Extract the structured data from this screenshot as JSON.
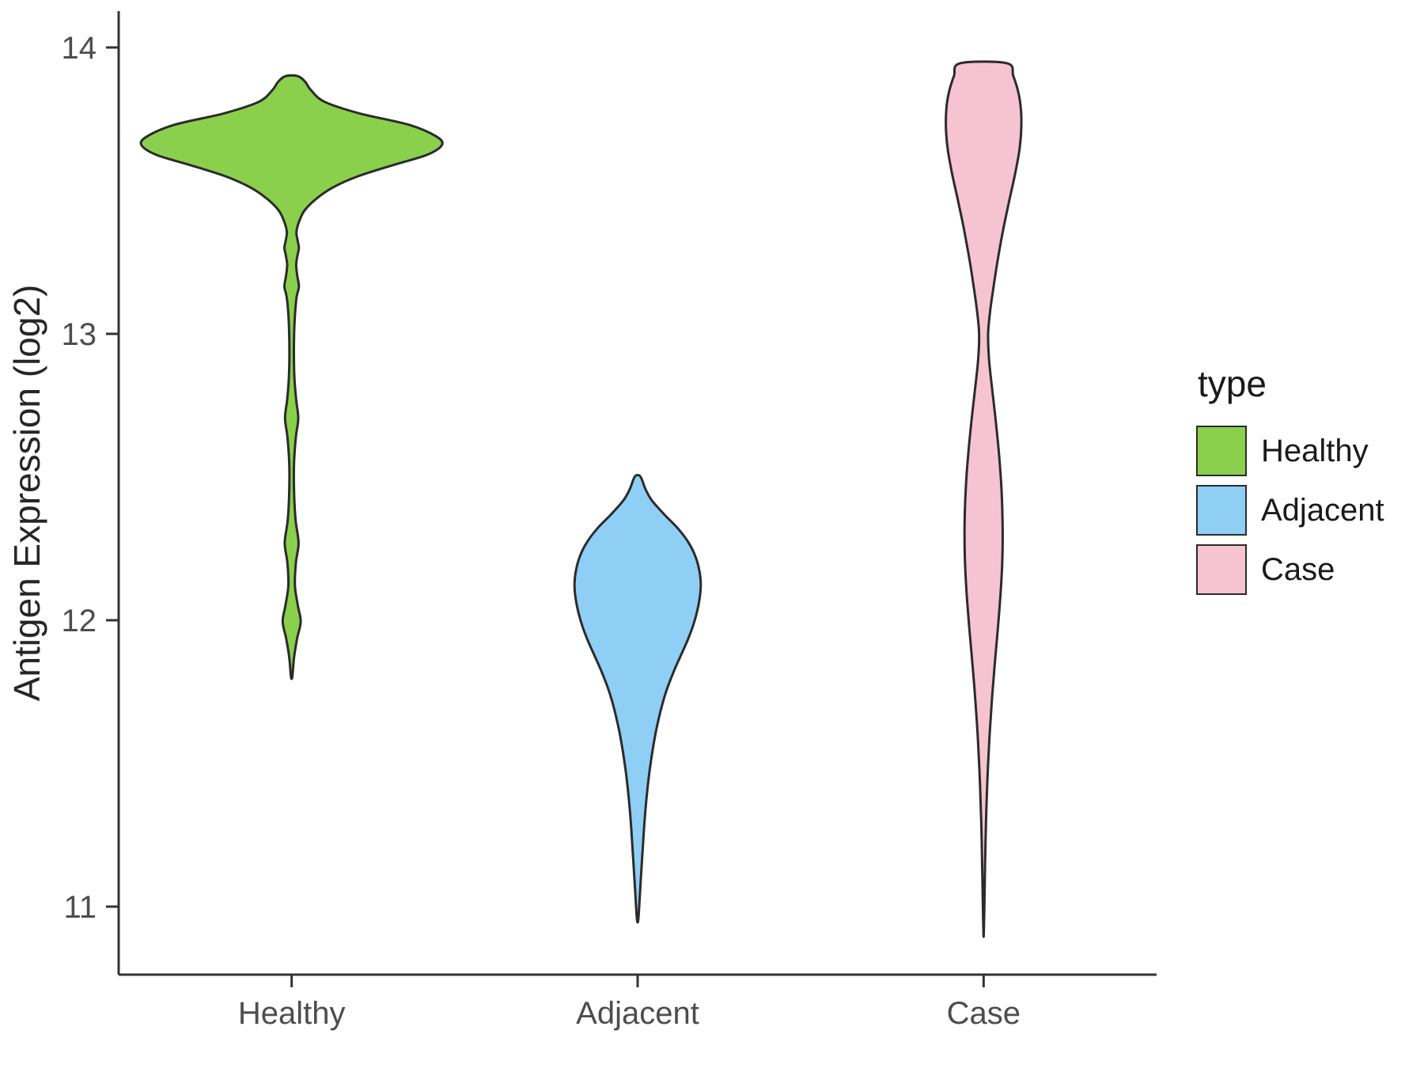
{
  "chart_data": {
    "type": "violin",
    "title": "",
    "xlabel": "",
    "ylabel": "Antigen Expression (log2)",
    "categories": [
      "Healthy",
      "Adjacent",
      "Case"
    ],
    "y_axis": {
      "ticks": [
        11,
        12,
        13,
        14
      ],
      "min": 10.8,
      "max": 14.05
    },
    "grid": false,
    "outline_color": "#2b2b2b",
    "axis_color": "#333333",
    "tick_text_color": "#4d4d4d",
    "legend": {
      "title": "type",
      "position": "right",
      "entries": [
        {
          "label": "Healthy",
          "color": "#8bd04c"
        },
        {
          "label": "Adjacent",
          "color": "#8fcff6"
        },
        {
          "label": "Case",
          "color": "#f6c4d1"
        }
      ]
    },
    "series": [
      {
        "name": "Healthy",
        "fill": "#8bd04c",
        "rel_width": 1.0,
        "y_range": [
          11.8,
          13.9
        ],
        "profile": [
          [
            13.9,
            0.04
          ],
          [
            13.88,
            0.09
          ],
          [
            13.85,
            0.13
          ],
          [
            13.81,
            0.22
          ],
          [
            13.77,
            0.45
          ],
          [
            13.73,
            0.78
          ],
          [
            13.69,
            0.96
          ],
          [
            13.66,
            1.0
          ],
          [
            13.625,
            0.9
          ],
          [
            13.59,
            0.68
          ],
          [
            13.55,
            0.44
          ],
          [
            13.51,
            0.27
          ],
          [
            13.47,
            0.16
          ],
          [
            13.43,
            0.085
          ],
          [
            13.39,
            0.048
          ],
          [
            13.355,
            0.032
          ],
          [
            13.325,
            0.04
          ],
          [
            13.3,
            0.048
          ],
          [
            13.272,
            0.038
          ],
          [
            13.24,
            0.03
          ],
          [
            13.2,
            0.038
          ],
          [
            13.165,
            0.048
          ],
          [
            13.125,
            0.032
          ],
          [
            13.05,
            0.02
          ],
          [
            12.95,
            0.015
          ],
          [
            12.85,
            0.018
          ],
          [
            12.77,
            0.03
          ],
          [
            12.705,
            0.044
          ],
          [
            12.64,
            0.028
          ],
          [
            12.55,
            0.016
          ],
          [
            12.45,
            0.016
          ],
          [
            12.35,
            0.026
          ],
          [
            12.27,
            0.046
          ],
          [
            12.2,
            0.028
          ],
          [
            12.12,
            0.022
          ],
          [
            12.05,
            0.042
          ],
          [
            11.995,
            0.06
          ],
          [
            11.935,
            0.036
          ],
          [
            11.87,
            0.016
          ],
          [
            11.81,
            0.006
          ],
          [
            11.795,
            0.0
          ]
        ]
      },
      {
        "name": "Adjacent",
        "fill": "#8fcff6",
        "rel_width": 0.42,
        "y_range": [
          10.95,
          12.5
        ],
        "profile": [
          [
            12.505,
            0.03
          ],
          [
            12.49,
            0.07
          ],
          [
            12.46,
            0.12
          ],
          [
            12.42,
            0.22
          ],
          [
            12.37,
            0.42
          ],
          [
            12.32,
            0.64
          ],
          [
            12.27,
            0.81
          ],
          [
            12.22,
            0.92
          ],
          [
            12.17,
            0.98
          ],
          [
            12.12,
            1.0
          ],
          [
            12.06,
            0.97
          ],
          [
            12.0,
            0.905
          ],
          [
            11.94,
            0.81
          ],
          [
            11.88,
            0.69
          ],
          [
            11.82,
            0.57
          ],
          [
            11.75,
            0.45
          ],
          [
            11.68,
            0.36
          ],
          [
            11.6,
            0.28
          ],
          [
            11.5,
            0.205
          ],
          [
            11.4,
            0.15
          ],
          [
            11.3,
            0.11
          ],
          [
            11.2,
            0.08
          ],
          [
            11.1,
            0.052
          ],
          [
            11.02,
            0.03
          ],
          [
            10.96,
            0.012
          ],
          [
            10.945,
            0.0
          ]
        ]
      },
      {
        "name": "Case",
        "fill": "#f6c4d1",
        "rel_width": 0.25,
        "y_range": [
          10.9,
          13.95
        ],
        "profile": [
          [
            13.945,
            0.62
          ],
          [
            13.9,
            0.79
          ],
          [
            13.84,
            0.93
          ],
          [
            13.78,
            0.995
          ],
          [
            13.71,
            1.0
          ],
          [
            13.64,
            0.95
          ],
          [
            13.56,
            0.84
          ],
          [
            13.47,
            0.69
          ],
          [
            13.37,
            0.53
          ],
          [
            13.27,
            0.39
          ],
          [
            13.17,
            0.27
          ],
          [
            13.08,
            0.175
          ],
          [
            13.0,
            0.12
          ],
          [
            12.91,
            0.145
          ],
          [
            12.81,
            0.225
          ],
          [
            12.7,
            0.32
          ],
          [
            12.58,
            0.41
          ],
          [
            12.46,
            0.475
          ],
          [
            12.34,
            0.505
          ],
          [
            12.22,
            0.5
          ],
          [
            12.1,
            0.455
          ],
          [
            11.98,
            0.385
          ],
          [
            11.86,
            0.305
          ],
          [
            11.73,
            0.225
          ],
          [
            11.59,
            0.155
          ],
          [
            11.44,
            0.1
          ],
          [
            11.29,
            0.062
          ],
          [
            11.14,
            0.038
          ],
          [
            11.0,
            0.02
          ],
          [
            10.91,
            0.005
          ],
          [
            10.895,
            0.0
          ]
        ]
      }
    ]
  }
}
